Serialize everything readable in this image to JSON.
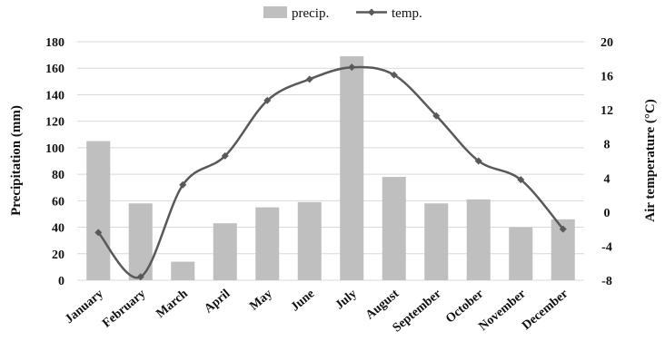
{
  "chart_data": {
    "type": "bar+line",
    "categories": [
      "January",
      "February",
      "March",
      "April",
      "May",
      "June",
      "July",
      "August",
      "September",
      "October",
      "November",
      "December"
    ],
    "series": [
      {
        "name": "precip.",
        "type": "bar",
        "axis": "left",
        "color": "#bfbfbf",
        "values": [
          105,
          58,
          14,
          43,
          55,
          59,
          169,
          78,
          58,
          61,
          40,
          46
        ]
      },
      {
        "name": "temp.",
        "type": "line",
        "axis": "right",
        "color": "#595959",
        "values": [
          -2.4,
          -7.6,
          3.2,
          6.6,
          13.1,
          15.6,
          17.0,
          16.1,
          11.3,
          6.0,
          3.8,
          -2.0
        ]
      }
    ],
    "ylabel": "Precipitation (mm)",
    "ylim": [
      0,
      180
    ],
    "yticks": [
      0,
      20,
      40,
      60,
      80,
      100,
      120,
      140,
      160,
      180
    ],
    "y2label": "Air temperature (°C)",
    "y2lim": [
      -8,
      20
    ],
    "y2ticks": [
      -8,
      -4,
      0,
      4,
      8,
      12,
      16,
      20
    ],
    "grid": true,
    "legend_position": "top"
  }
}
